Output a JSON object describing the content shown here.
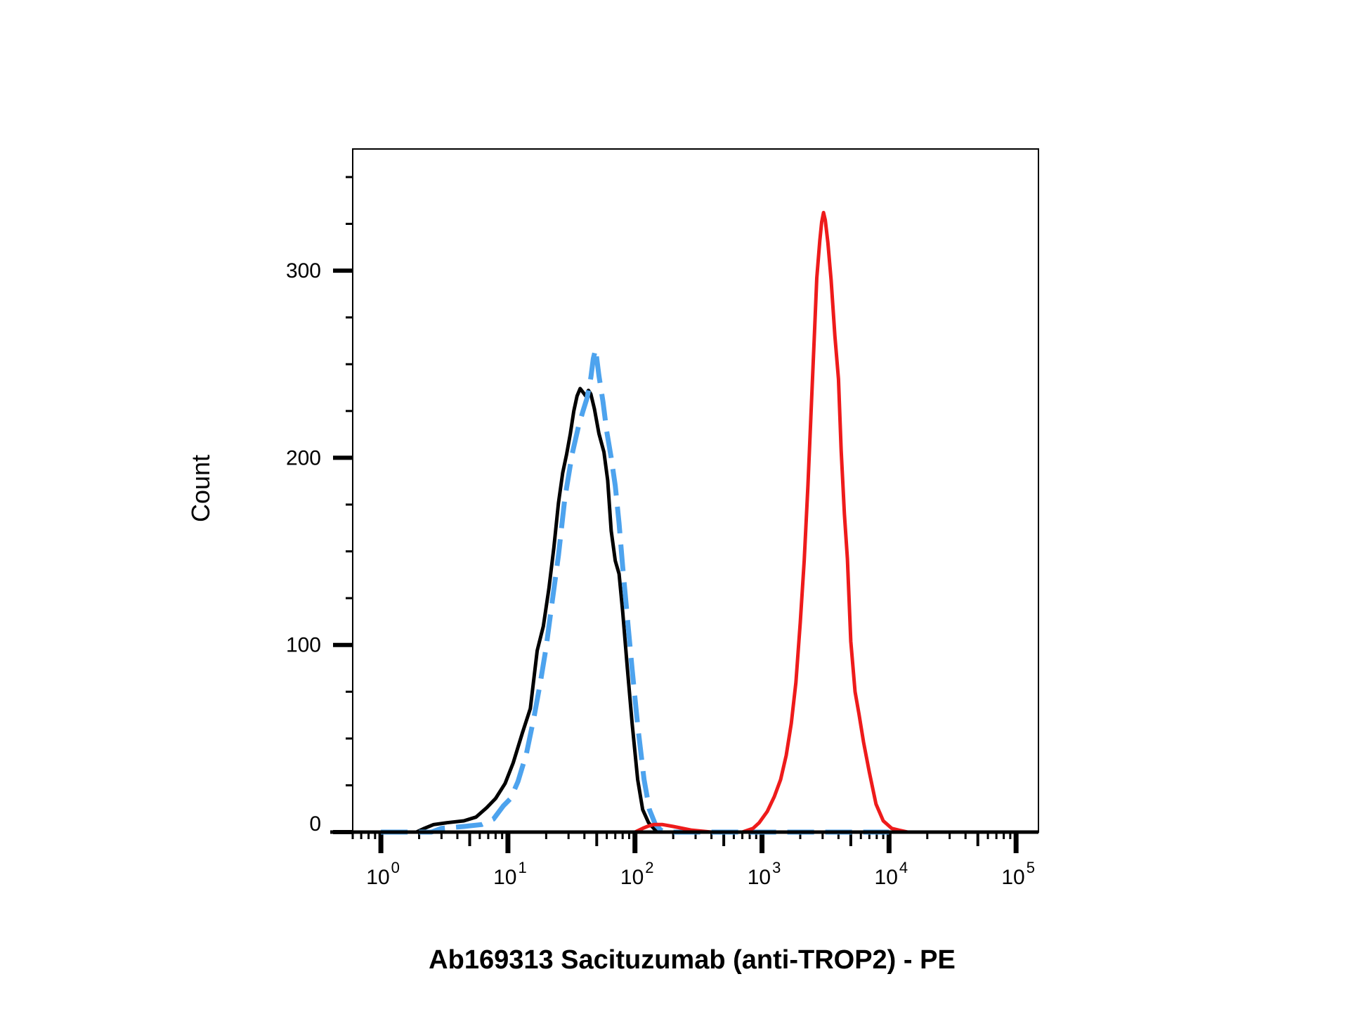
{
  "chart_data": {
    "type": "line",
    "title": "",
    "xlabel": "Ab169313 Sacituzumab (anti-TROP2) - PE",
    "ylabel": "Count",
    "x_scale": "log10",
    "xlim": [
      0.6,
      150000
    ],
    "ylim": [
      0,
      365
    ],
    "y_ticks": [
      0,
      100,
      200,
      300
    ],
    "y_tick_labels": [
      "0",
      "100",
      "200",
      "300"
    ],
    "x_ticks": [
      1,
      10,
      100,
      1000,
      10000,
      100000
    ],
    "x_tick_labels": [
      {
        "base": "10",
        "exp": "0"
      },
      {
        "base": "10",
        "exp": "1"
      },
      {
        "base": "10",
        "exp": "2"
      },
      {
        "base": "10",
        "exp": "3"
      },
      {
        "base": "10",
        "exp": "4"
      },
      {
        "base": "10",
        "exp": "5"
      }
    ],
    "grid": false,
    "legend": "none",
    "series": [
      {
        "color": "#000000",
        "style": "solid",
        "points": [
          [
            1.0,
            0
          ],
          [
            1.9,
            0
          ],
          [
            2.2,
            2
          ],
          [
            2.6,
            4
          ],
          [
            3.3,
            5
          ],
          [
            4.5,
            6
          ],
          [
            5.6,
            8
          ],
          [
            6.8,
            13
          ],
          [
            8.0,
            18
          ],
          [
            9.5,
            26
          ],
          [
            11,
            37
          ],
          [
            13,
            53
          ],
          [
            15,
            66
          ],
          [
            17,
            97
          ],
          [
            19,
            110
          ],
          [
            21,
            130
          ],
          [
            23,
            152
          ],
          [
            25,
            176
          ],
          [
            27,
            192
          ],
          [
            29,
            202
          ],
          [
            31,
            213
          ],
          [
            33,
            225
          ],
          [
            35,
            233
          ],
          [
            37,
            237
          ],
          [
            39,
            235
          ],
          [
            41,
            233
          ],
          [
            43,
            236
          ],
          [
            45,
            234
          ],
          [
            48,
            226
          ],
          [
            52,
            213
          ],
          [
            57,
            203
          ],
          [
            61,
            188
          ],
          [
            65,
            161
          ],
          [
            70,
            145
          ],
          [
            75,
            138
          ],
          [
            80,
            118
          ],
          [
            87,
            88
          ],
          [
            95,
            58
          ],
          [
            105,
            28
          ],
          [
            115,
            12
          ],
          [
            128,
            5
          ],
          [
            145,
            1
          ],
          [
            160,
            0
          ],
          [
            1000,
            0
          ],
          [
            10000,
            0
          ]
        ]
      },
      {
        "color": "#4da3ee",
        "style": "dashed",
        "points": [
          [
            1.0,
            0
          ],
          [
            2.5,
            0
          ],
          [
            3.0,
            2
          ],
          [
            4.5,
            3
          ],
          [
            6.2,
            4
          ],
          [
            7.7,
            7
          ],
          [
            9.2,
            14
          ],
          [
            10.5,
            18
          ],
          [
            12,
            27
          ],
          [
            14,
            42
          ],
          [
            16,
            61
          ],
          [
            18,
            80
          ],
          [
            20,
            99
          ],
          [
            22,
            120
          ],
          [
            25,
            148
          ],
          [
            28,
            178
          ],
          [
            32,
            202
          ],
          [
            36,
            217
          ],
          [
            39,
            225
          ],
          [
            42,
            232
          ],
          [
            45,
            243
          ],
          [
            47,
            253
          ],
          [
            49,
            258
          ],
          [
            52,
            244
          ],
          [
            56,
            230
          ],
          [
            60,
            214
          ],
          [
            65,
            200
          ],
          [
            70,
            185
          ],
          [
            75,
            165
          ],
          [
            80,
            142
          ],
          [
            87,
            115
          ],
          [
            95,
            87
          ],
          [
            105,
            57
          ],
          [
            118,
            28
          ],
          [
            130,
            12
          ],
          [
            145,
            4
          ],
          [
            160,
            1
          ],
          [
            180,
            0
          ],
          [
            900,
            0
          ],
          [
            10000,
            0
          ]
        ]
      },
      {
        "color": "#ee1b1b",
        "style": "solid",
        "points": [
          [
            1.0,
            0
          ],
          [
            100,
            0
          ],
          [
            115,
            2
          ],
          [
            125,
            3
          ],
          [
            140,
            4
          ],
          [
            165,
            4
          ],
          [
            200,
            3
          ],
          [
            280,
            1
          ],
          [
            400,
            0
          ],
          [
            700,
            0
          ],
          [
            850,
            2
          ],
          [
            950,
            5
          ],
          [
            1100,
            11
          ],
          [
            1250,
            19
          ],
          [
            1400,
            28
          ],
          [
            1550,
            41
          ],
          [
            1700,
            58
          ],
          [
            1850,
            80
          ],
          [
            2000,
            112
          ],
          [
            2150,
            145
          ],
          [
            2300,
            185
          ],
          [
            2450,
            229
          ],
          [
            2600,
            270
          ],
          [
            2700,
            296
          ],
          [
            2850,
            316
          ],
          [
            2950,
            326
          ],
          [
            3050,
            331
          ],
          [
            3150,
            327
          ],
          [
            3300,
            315
          ],
          [
            3500,
            295
          ],
          [
            3750,
            265
          ],
          [
            4000,
            242
          ],
          [
            4200,
            204
          ],
          [
            4450,
            170
          ],
          [
            4700,
            146
          ],
          [
            5000,
            102
          ],
          [
            5400,
            75
          ],
          [
            5800,
            63
          ],
          [
            6300,
            48
          ],
          [
            7000,
            32
          ],
          [
            7900,
            15
          ],
          [
            9000,
            6
          ],
          [
            10500,
            2
          ],
          [
            12000,
            1
          ],
          [
            14000,
            0
          ],
          [
            150000,
            0
          ]
        ]
      }
    ]
  }
}
